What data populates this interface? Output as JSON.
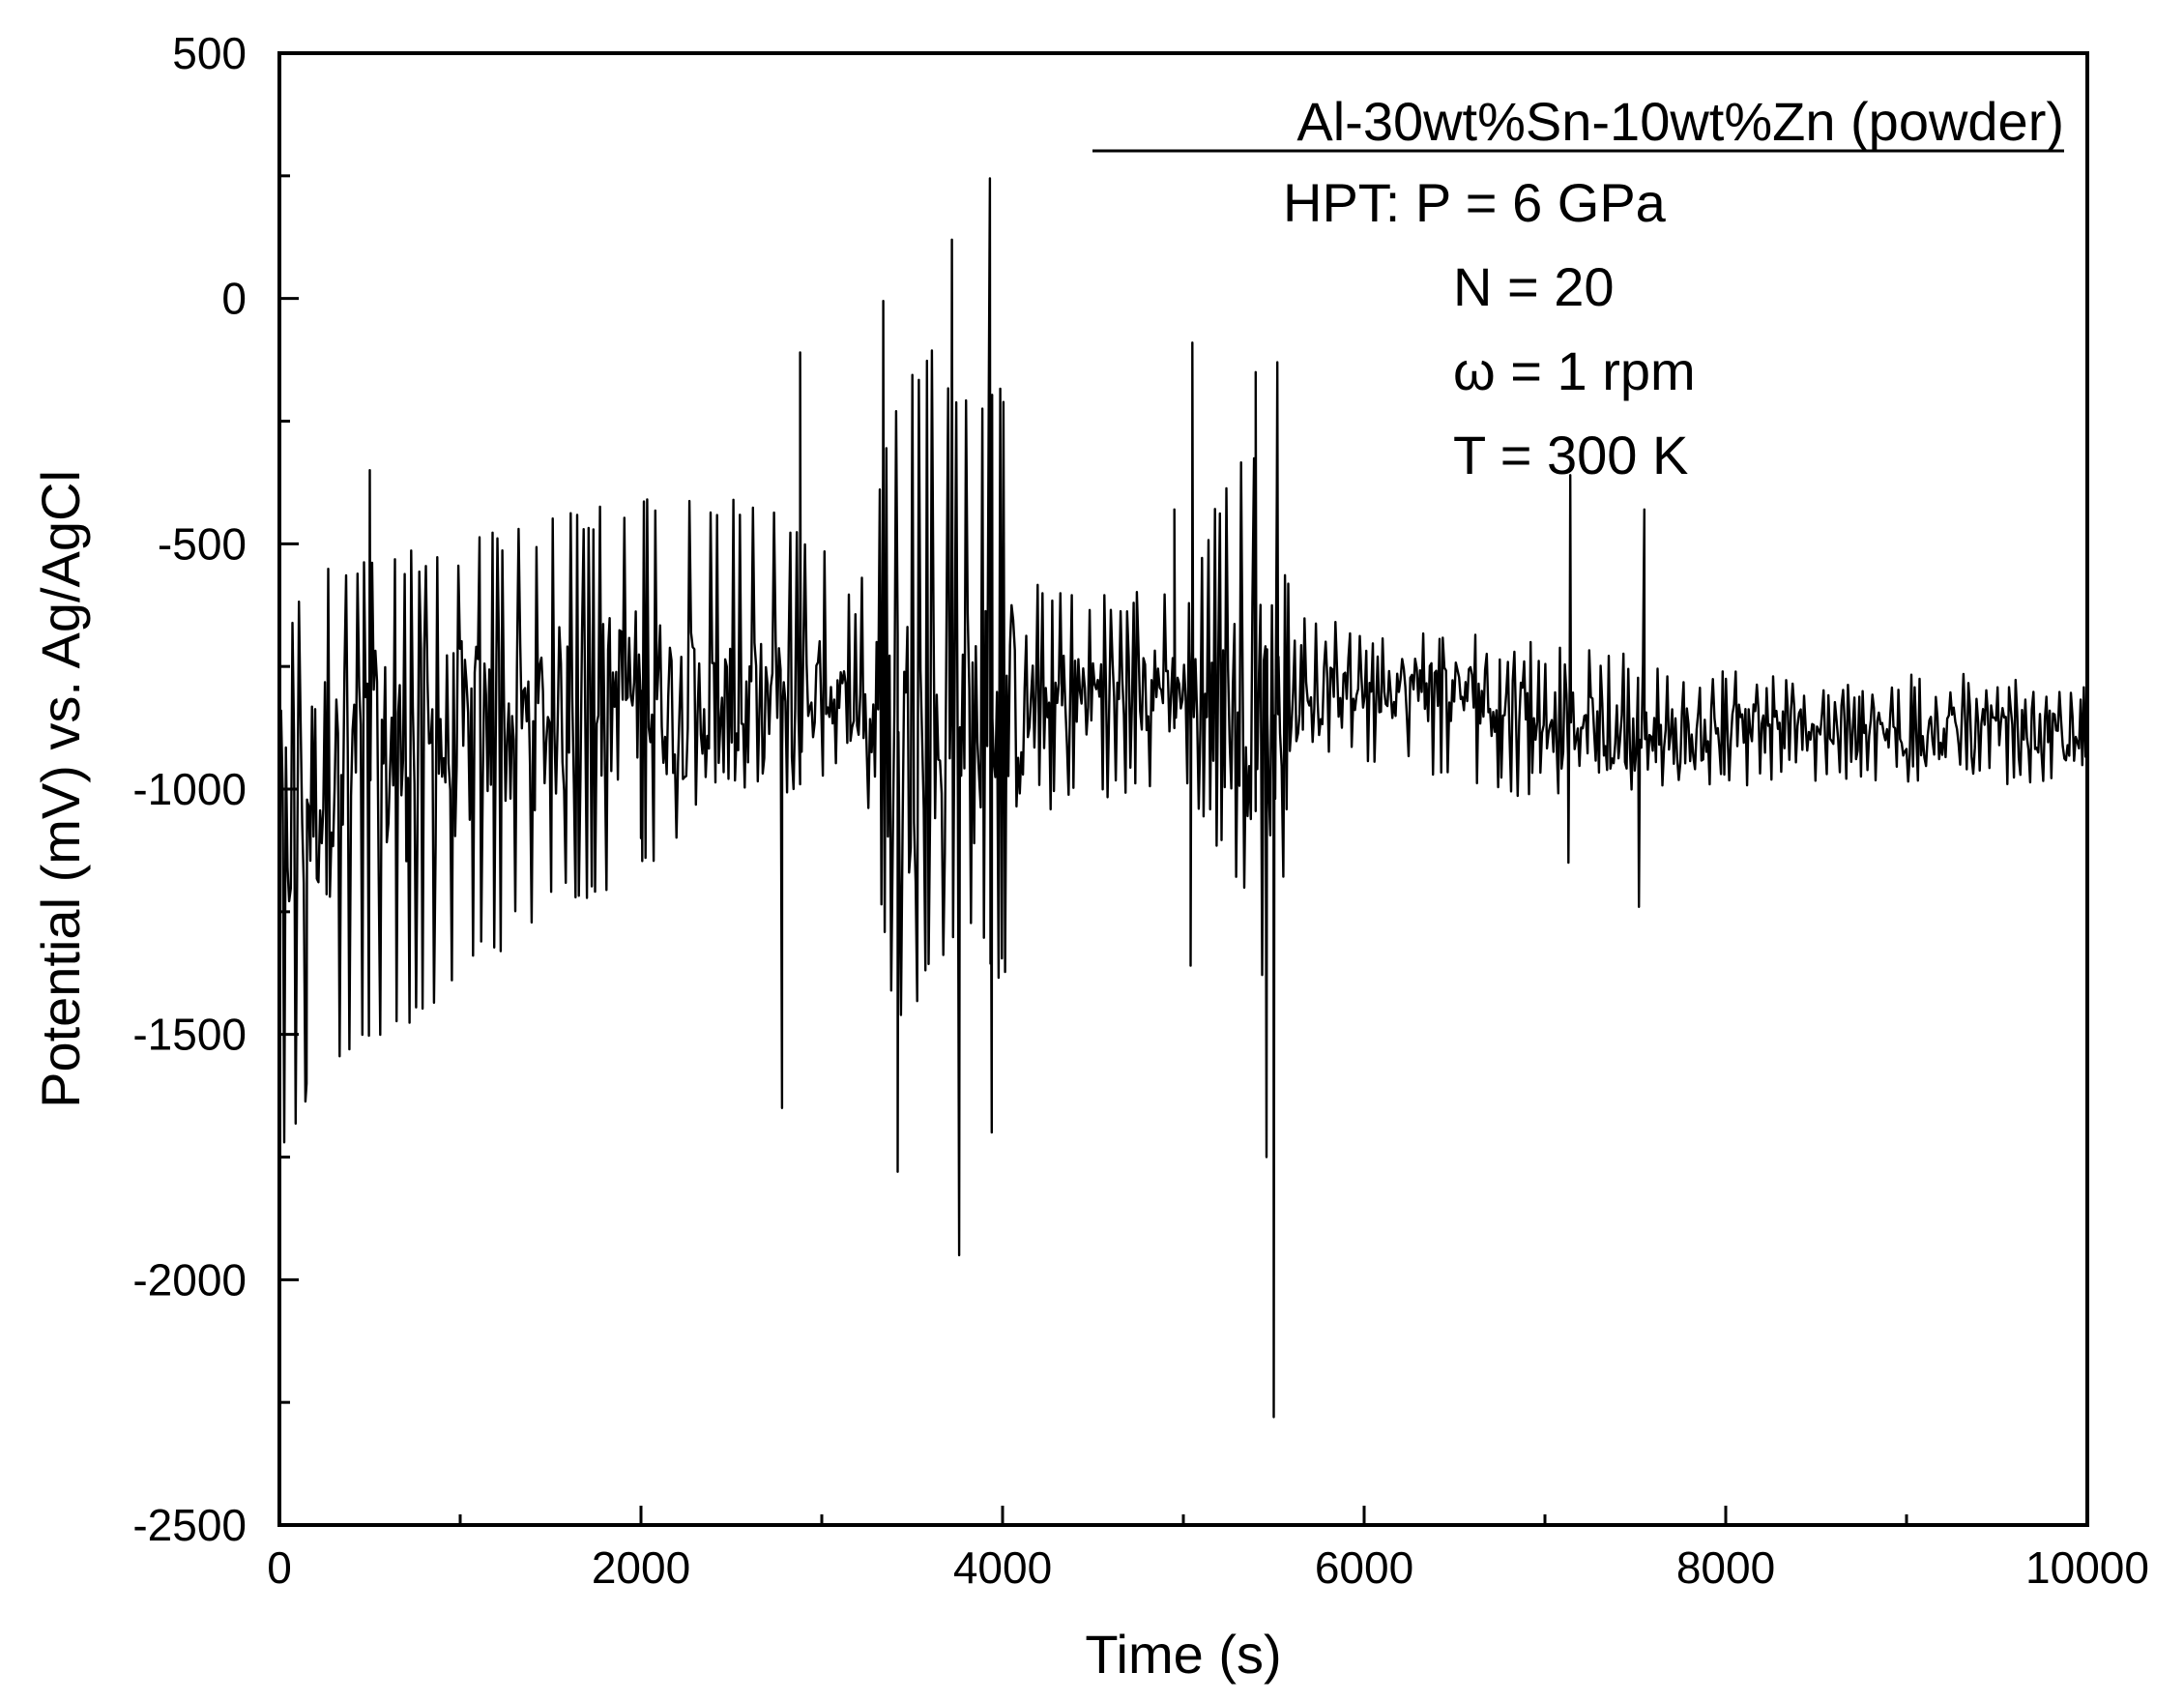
{
  "chart_data": {
    "type": "line",
    "xlabel": "Time (s)",
    "ylabel": "Potential (mV) vs. Ag/AgCl",
    "xlim": [
      0,
      10000
    ],
    "ylim": [
      -2500,
      500
    ],
    "x_ticks": [
      0,
      2000,
      4000,
      6000,
      8000,
      10000
    ],
    "x_tick_labels": [
      "0",
      "2000",
      "4000",
      "6000",
      "8000",
      "10000"
    ],
    "y_ticks": [
      500,
      0,
      -500,
      -1000,
      -1500,
      -2000,
      -2500
    ],
    "y_tick_labels": [
      "500",
      "0",
      "-500",
      "-1000",
      "-1500",
      "-2000",
      "-2500"
    ],
    "grid": false,
    "annotation": {
      "material": "Al-30wt%Sn-10wt%Zn (powder)",
      "lines": [
        "HPT: P = 6 GPa",
        "N = 20",
        "ω = 1 rpm",
        "T = 300 K"
      ]
    },
    "series": [
      {
        "color": "#000000",
        "baseline": [
          [
            0,
            -1100
          ],
          [
            200,
            -1000
          ],
          [
            500,
            -950
          ],
          [
            1000,
            -900
          ],
          [
            1500,
            -850
          ],
          [
            2000,
            -800
          ],
          [
            2500,
            -850
          ],
          [
            3000,
            -800
          ],
          [
            3500,
            -900
          ],
          [
            4000,
            -850
          ],
          [
            4500,
            -800
          ],
          [
            5000,
            -800
          ],
          [
            5500,
            -850
          ],
          [
            6000,
            -780
          ],
          [
            6500,
            -800
          ],
          [
            7000,
            -850
          ],
          [
            7500,
            -900
          ],
          [
            8000,
            -880
          ],
          [
            8500,
            -870
          ],
          [
            9000,
            -890
          ],
          [
            9500,
            -880
          ],
          [
            10000,
            -900
          ]
        ],
        "envelope": [
          [
            0,
            -1800,
            -650
          ],
          [
            200,
            -1600,
            -550
          ],
          [
            500,
            -1550,
            -520
          ],
          [
            1000,
            -1400,
            -490
          ],
          [
            1500,
            -1250,
            -440
          ],
          [
            1800,
            -1220,
            -420
          ],
          [
            2000,
            -1200,
            -410
          ],
          [
            2500,
            -1000,
            -400
          ],
          [
            2800,
            -1050,
            -420
          ],
          [
            3000,
            -980,
            -500
          ],
          [
            3200,
            -900,
            -600
          ],
          [
            3400,
            -1500,
            -200
          ],
          [
            3600,
            -1400,
            -100
          ],
          [
            3800,
            -1300,
            -200
          ],
          [
            4000,
            -1400,
            -150
          ],
          [
            4200,
            -1050,
            -550
          ],
          [
            4500,
            -1020,
            -580
          ],
          [
            5000,
            -1000,
            -600
          ],
          [
            5300,
            -1200,
            -300
          ],
          [
            5500,
            -1500,
            -300
          ],
          [
            5600,
            -900,
            -650
          ],
          [
            6000,
            -950,
            -650
          ],
          [
            6500,
            -1000,
            -680
          ],
          [
            7000,
            -1020,
            -700
          ],
          [
            7500,
            -1000,
            -720
          ],
          [
            8000,
            -1000,
            -740
          ],
          [
            8500,
            -990,
            -760
          ],
          [
            9000,
            -990,
            -760
          ],
          [
            9500,
            -990,
            -760
          ],
          [
            10000,
            -990,
            -760
          ]
        ],
        "spikes": [
          [
            500,
            -350
          ],
          [
            2880,
            -110
          ],
          [
            3340,
            -5
          ],
          [
            3720,
            120
          ],
          [
            3930,
            245
          ],
          [
            4950,
            -430
          ],
          [
            5050,
            -90
          ],
          [
            5400,
            -150
          ],
          [
            5520,
            -130
          ],
          [
            7140,
            -360
          ],
          [
            7550,
            -430
          ],
          [
            2780,
            -1650
          ],
          [
            3420,
            -1780
          ],
          [
            3760,
            -1950
          ],
          [
            3940,
            -1700
          ],
          [
            5040,
            -1360
          ],
          [
            5460,
            -1750
          ],
          [
            5500,
            -2280
          ],
          [
            7130,
            -1150
          ],
          [
            7520,
            -1240
          ],
          [
            2000,
            -1100
          ],
          [
            150,
            -1600
          ],
          [
            0,
            -1900
          ]
        ]
      }
    ]
  }
}
